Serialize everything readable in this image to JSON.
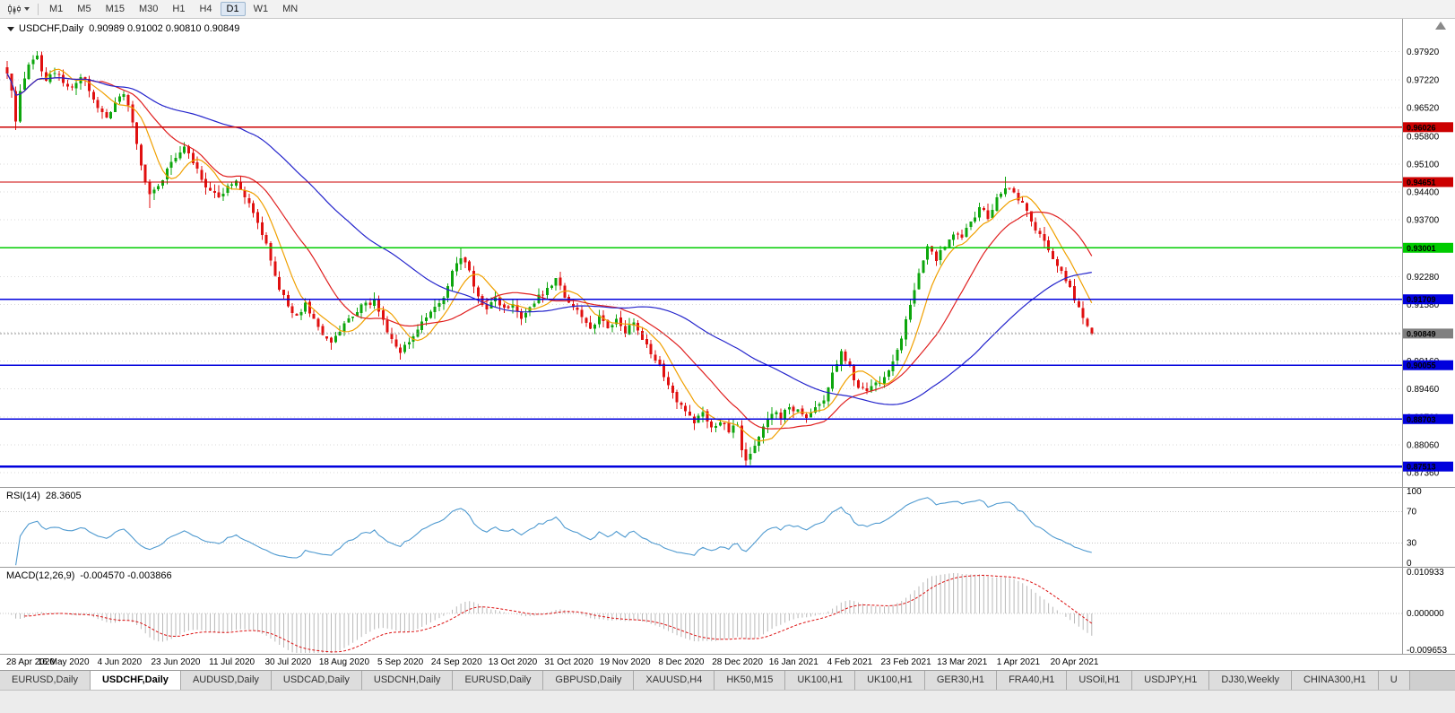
{
  "toolbar": {
    "timeframes": [
      "M1",
      "M5",
      "M15",
      "M30",
      "H1",
      "H4",
      "D1",
      "W1",
      "MN"
    ],
    "active_timeframe": "D1"
  },
  "chart_data": {
    "type": "candlestick",
    "symbol": "USDCHF,Daily",
    "ohlc_text": "0.90989 0.91002 0.90810 0.90849",
    "last_candle": {
      "o": 0.90989,
      "h": 0.91002,
      "l": 0.9081,
      "c": 0.90849
    },
    "bar_count": 252,
    "up_color": "#0da60d",
    "down_color": "#e01010",
    "noise_seed": 123456,
    "close_anchors": [
      [
        0,
        0.973
      ],
      [
        1,
        0.97
      ],
      [
        2,
        0.9625
      ],
      [
        3,
        0.97
      ],
      [
        5,
        0.9755
      ],
      [
        7,
        0.9775
      ],
      [
        9,
        0.972
      ],
      [
        11,
        0.9745
      ],
      [
        13,
        0.972
      ],
      [
        15,
        0.97
      ],
      [
        17,
        0.973
      ],
      [
        19,
        0.97
      ],
      [
        21,
        0.9655
      ],
      [
        23,
        0.962
      ],
      [
        25,
        0.9665
      ],
      [
        27,
        0.969
      ],
      [
        29,
        0.962
      ],
      [
        31,
        0.95
      ],
      [
        33,
        0.943
      ],
      [
        35,
        0.9455
      ],
      [
        37,
        0.95
      ],
      [
        39,
        0.953
      ],
      [
        41,
        0.955
      ],
      [
        43,
        0.9515
      ],
      [
        45,
        0.947
      ],
      [
        47,
        0.9445
      ],
      [
        49,
        0.9425
      ],
      [
        51,
        0.945
      ],
      [
        53,
        0.9462
      ],
      [
        55,
        0.943
      ],
      [
        57,
        0.9395
      ],
      [
        59,
        0.934
      ],
      [
        61,
        0.927
      ],
      [
        63,
        0.9195
      ],
      [
        65,
        0.9155
      ],
      [
        67,
        0.913
      ],
      [
        69,
        0.9158
      ],
      [
        71,
        0.912
      ],
      [
        73,
        0.9085
      ],
      [
        75,
        0.906
      ],
      [
        77,
        0.9095
      ],
      [
        79,
        0.9125
      ],
      [
        81,
        0.9145
      ],
      [
        83,
        0.9155
      ],
      [
        85,
        0.9165
      ],
      [
        87,
        0.912
      ],
      [
        89,
        0.907
      ],
      [
        91,
        0.904
      ],
      [
        93,
        0.906
      ],
      [
        95,
        0.9095
      ],
      [
        97,
        0.9125
      ],
      [
        99,
        0.9145
      ],
      [
        101,
        0.918
      ],
      [
        103,
        0.924
      ],
      [
        105,
        0.9278
      ],
      [
        107,
        0.924
      ],
      [
        109,
        0.918
      ],
      [
        111,
        0.915
      ],
      [
        113,
        0.917
      ],
      [
        115,
        0.9145
      ],
      [
        117,
        0.916
      ],
      [
        119,
        0.913
      ],
      [
        121,
        0.915
      ],
      [
        123,
        0.9175
      ],
      [
        125,
        0.92
      ],
      [
        127,
        0.9225
      ],
      [
        129,
        0.918
      ],
      [
        131,
        0.915
      ],
      [
        133,
        0.913
      ],
      [
        135,
        0.9105
      ],
      [
        137,
        0.9125
      ],
      [
        139,
        0.91
      ],
      [
        141,
        0.9115
      ],
      [
        143,
        0.909
      ],
      [
        145,
        0.911
      ],
      [
        147,
        0.9075
      ],
      [
        149,
        0.904
      ],
      [
        151,
        0.9
      ],
      [
        153,
        0.896
      ],
      [
        155,
        0.892
      ],
      [
        157,
        0.8895
      ],
      [
        159,
        0.8865
      ],
      [
        161,
        0.889
      ],
      [
        163,
        0.885
      ],
      [
        165,
        0.887
      ],
      [
        167,
        0.884
      ],
      [
        169,
        0.8855
      ],
      [
        170,
        0.88
      ],
      [
        171,
        0.8765
      ],
      [
        173,
        0.8805
      ],
      [
        175,
        0.8855
      ],
      [
        177,
        0.889
      ],
      [
        179,
        0.887
      ],
      [
        181,
        0.8905
      ],
      [
        183,
        0.889
      ],
      [
        185,
        0.887
      ],
      [
        187,
        0.8895
      ],
      [
        189,
        0.892
      ],
      [
        191,
        0.899
      ],
      [
        193,
        0.9035
      ],
      [
        195,
        0.9
      ],
      [
        197,
        0.895
      ],
      [
        199,
        0.8935
      ],
      [
        201,
        0.896
      ],
      [
        203,
        0.898
      ],
      [
        205,
        0.901
      ],
      [
        207,
        0.908
      ],
      [
        209,
        0.916
      ],
      [
        211,
        0.924
      ],
      [
        213,
        0.93
      ],
      [
        215,
        0.927
      ],
      [
        217,
        0.931
      ],
      [
        219,
        0.934
      ],
      [
        221,
        0.932
      ],
      [
        223,
        0.9365
      ],
      [
        225,
        0.9395
      ],
      [
        227,
        0.938
      ],
      [
        229,
        0.942
      ],
      [
        231,
        0.9455
      ],
      [
        233,
        0.944
      ],
      [
        235,
        0.941
      ],
      [
        237,
        0.937
      ],
      [
        239,
        0.933
      ],
      [
        241,
        0.929
      ],
      [
        243,
        0.925
      ],
      [
        245,
        0.922
      ],
      [
        247,
        0.917
      ],
      [
        249,
        0.913
      ],
      [
        250,
        0.9105
      ],
      [
        251,
        0.9085
      ]
    ],
    "wick_overrides": {
      "2": {
        "l": 0.9595
      },
      "33": {
        "l": 0.94
      },
      "41": {
        "h": 0.9565
      },
      "75": {
        "l": 0.9044
      },
      "91": {
        "l": 0.902
      },
      "105": {
        "h": 0.9298
      },
      "171": {
        "l": 0.8752
      },
      "193": {
        "h": 0.9046
      },
      "231": {
        "h": 0.9478
      }
    },
    "price_axis": {
      "max": 0.987,
      "min": 0.87,
      "grid_prices": [
        0.9792,
        0.9722,
        0.9652,
        0.958,
        0.951,
        0.944,
        0.937,
        0.93,
        0.9228,
        0.9158,
        0.9088,
        0.9016,
        0.8946,
        0.8876,
        0.8806,
        0.8736
      ]
    },
    "horizontal_lines": [
      {
        "price": 0.96026,
        "label": "0.96026",
        "color": "#cc0000",
        "width": 1.4
      },
      {
        "price": 0.94651,
        "label": "0.94651",
        "color": "#cc0000",
        "width": 1.4
      },
      {
        "price": 0.93001,
        "label": "0.93001",
        "color": "#00cc00",
        "width": 1.8
      },
      {
        "price": 0.91709,
        "label": "0.91709",
        "color": "#0000dd",
        "width": 1.8
      },
      {
        "price": 0.90055,
        "label": "0.90055",
        "color": "#0000dd",
        "width": 1.8
      },
      {
        "price": 0.88703,
        "label": "0.88703",
        "color": "#0000dd",
        "width": 1.8
      },
      {
        "price": 0.87513,
        "label": "0.87513",
        "color": "#0000dd",
        "width": 2.6
      }
    ],
    "current_price": {
      "value": 0.90849,
      "label": "0.90849",
      "badge_color": "#808080"
    },
    "moving_averages": [
      {
        "period": 8,
        "color": "#f0a000"
      },
      {
        "period": 20,
        "color": "#e02020"
      },
      {
        "period": 55,
        "color": "#2424cc"
      }
    ],
    "date_labels": [
      "28 Apr 2020",
      "16 May 2020",
      "4 Jun 2020",
      "23 Jun 2020",
      "11 Jul 2020",
      "30 Jul 2020",
      "18 Aug 2020",
      "5 Sep 2020",
      "24 Sep 2020",
      "13 Oct 2020",
      "31 Oct 2020",
      "19 Nov 2020",
      "8 Dec 2020",
      "28 Dec 2020",
      "16 Jan 2021",
      "4 Feb 2021",
      "23 Feb 2021",
      "13 Mar 2021",
      "1 Apr 2021",
      "20 Apr 2021"
    ],
    "bars_per_date_label": 13
  },
  "rsi": {
    "label": "RSI(14)",
    "value": "28.3605",
    "period": 14,
    "color": "#4f9ad0",
    "levels": [
      70,
      30
    ],
    "axis_labels": [
      100,
      70,
      30,
      0
    ]
  },
  "macd": {
    "label": "MACD(12,26,9)",
    "values": "-0.004570 -0.003866",
    "fast": 12,
    "slow": 26,
    "signal": 9,
    "histogram_color": "#b8b8b8",
    "signal_color": "#dd1111",
    "axis_labels": [
      "0.010933",
      "0.000000",
      "-0.009653"
    ],
    "axis_values": [
      0.010933,
      0,
      -0.009653
    ]
  },
  "tabs": {
    "active_index": 1,
    "items": [
      "EURUSD,Daily",
      "USDCHF,Daily",
      "AUDUSD,Daily",
      "USDCAD,Daily",
      "USDCNH,Daily",
      "EURUSD,Daily",
      "GBPUSD,Daily",
      "XAUUSD,H4",
      "HK50,M15",
      "UK100,H1",
      "UK100,H1",
      "GER30,H1",
      "FRA40,H1",
      "USOil,H1",
      "USDJPY,H1",
      "DJ30,Weekly",
      "CHINA300,H1",
      "U"
    ]
  }
}
